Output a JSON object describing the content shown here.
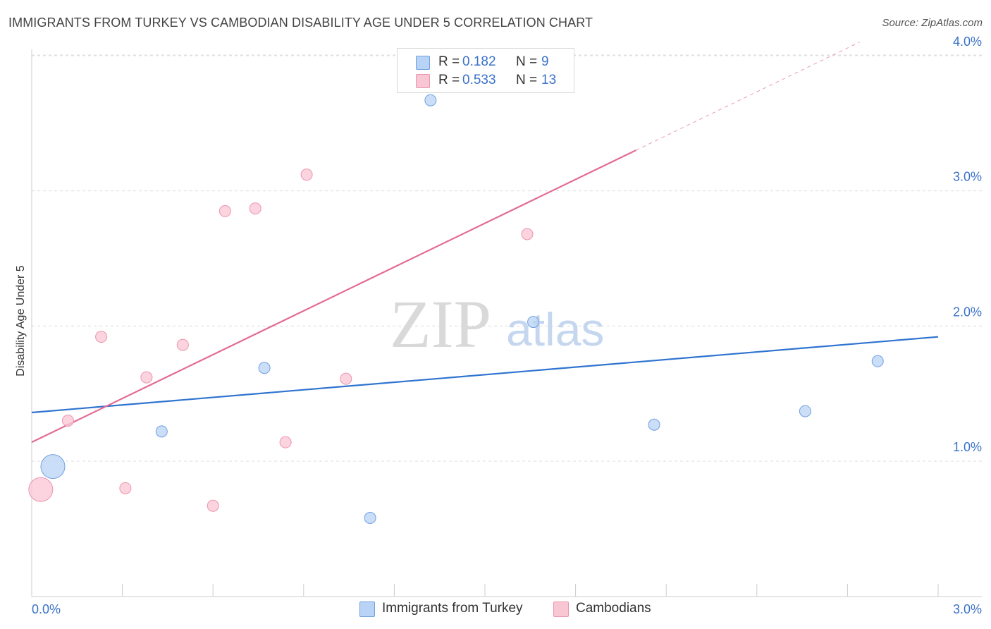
{
  "title": "IMMIGRANTS FROM TURKEY VS CAMBODIAN DISABILITY AGE UNDER 5 CORRELATION CHART",
  "source": "Source: ZipAtlas.com",
  "watermark": {
    "zip": "ZIP",
    "atlas": "atlas"
  },
  "legend": {
    "rows": [
      {
        "r_label": "R =",
        "r_value": "0.182",
        "n_label": "N =",
        "n_value": "9",
        "color": "#b8d3f5"
      },
      {
        "r_label": "R =",
        "r_value": "0.533",
        "n_label": "N =",
        "n_value": "13",
        "color": "#f9c6d4"
      }
    ]
  },
  "bottom_legend": [
    {
      "label": "Immigrants from Turkey",
      "color": "#b8d3f5"
    },
    {
      "label": "Cambodians",
      "color": "#f9c6d4"
    }
  ],
  "chart_data": {
    "type": "scatter",
    "title": "IMMIGRANTS FROM TURKEY VS CAMBODIAN DISABILITY AGE UNDER 5 CORRELATION CHART",
    "xlabel": "",
    "ylabel": "Disability Age Under 5",
    "xlim": [
      0,
      3.0
    ],
    "ylim": [
      0,
      4.1
    ],
    "x_tick_labels": [
      {
        "value": 0,
        "label": "0.0%"
      },
      {
        "value": 3.0,
        "label": "3.0%"
      }
    ],
    "y_ticks": [
      {
        "value": 1.0,
        "label": "1.0%"
      },
      {
        "value": 2.0,
        "label": "2.0%"
      },
      {
        "value": 3.0,
        "label": "3.0%"
      },
      {
        "value": 4.0,
        "label": "4.0%"
      }
    ],
    "grid": true,
    "series": [
      {
        "name": "Immigrants from Turkey",
        "color": "#b8d3f5",
        "stroke": "#6fa0e0",
        "line_color": "#2f74d0",
        "points": [
          {
            "x": 0.07,
            "y": 0.96,
            "size": "large"
          },
          {
            "x": 0.43,
            "y": 1.22
          },
          {
            "x": 0.77,
            "y": 1.69
          },
          {
            "x": 1.12,
            "y": 0.58
          },
          {
            "x": 1.32,
            "y": 3.67
          },
          {
            "x": 1.66,
            "y": 2.03
          },
          {
            "x": 2.06,
            "y": 1.27
          },
          {
            "x": 2.56,
            "y": 1.37
          },
          {
            "x": 2.8,
            "y": 1.74
          }
        ],
        "trend": {
          "x": [
            0,
            3.0
          ],
          "y": [
            1.36,
            1.92
          ],
          "dashed_from": null
        }
      },
      {
        "name": "Cambodians",
        "color": "#f9c6d4",
        "stroke": "#ec94ad",
        "line_color": "#e36b94",
        "points": [
          {
            "x": 0.03,
            "y": 0.79,
            "size": "large"
          },
          {
            "x": 0.12,
            "y": 1.3
          },
          {
            "x": 0.23,
            "y": 1.92
          },
          {
            "x": 0.31,
            "y": 0.8
          },
          {
            "x": 0.38,
            "y": 1.62
          },
          {
            "x": 0.5,
            "y": 1.86
          },
          {
            "x": 0.6,
            "y": 0.67
          },
          {
            "x": 0.64,
            "y": 2.85
          },
          {
            "x": 0.74,
            "y": 2.87
          },
          {
            "x": 0.84,
            "y": 1.14
          },
          {
            "x": 0.91,
            "y": 3.12
          },
          {
            "x": 1.04,
            "y": 1.61
          },
          {
            "x": 1.64,
            "y": 2.68
          }
        ],
        "trend": {
          "x": [
            0,
            2.74
          ],
          "y": [
            1.14,
            4.1
          ],
          "dashed_from": 2.0
        }
      }
    ]
  }
}
